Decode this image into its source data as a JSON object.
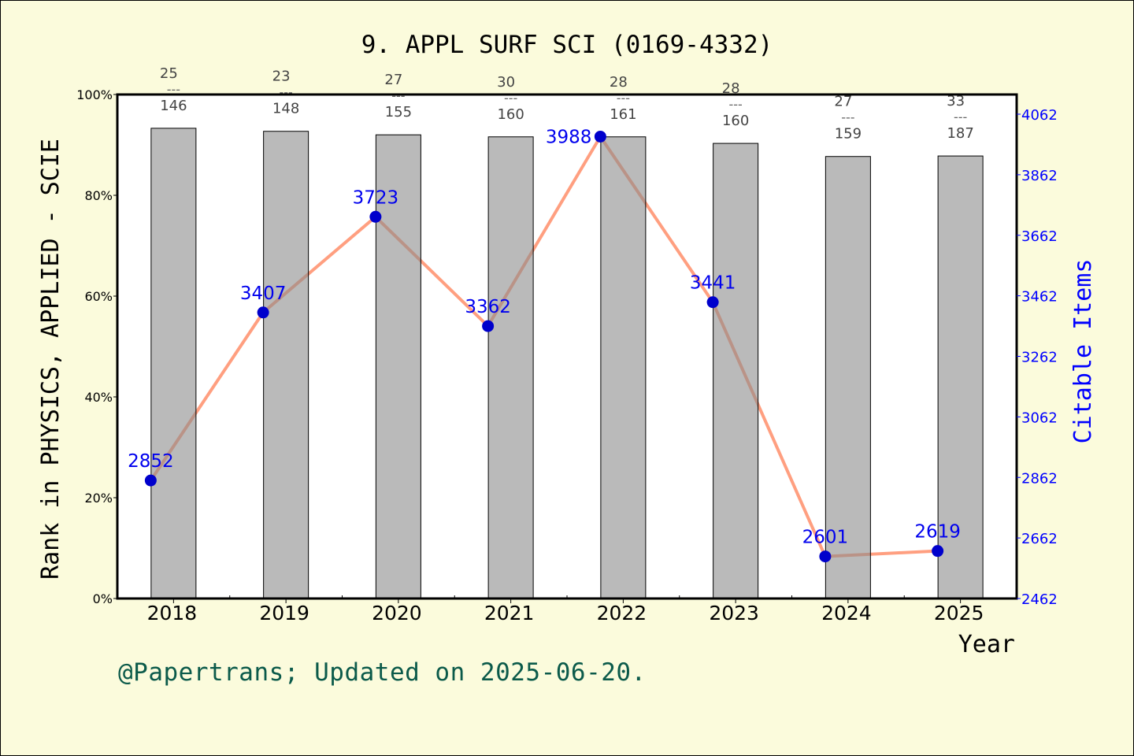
{
  "chart_data": {
    "type": "bar+line",
    "title": "9. APPL SURF SCI (0169-4332)",
    "xlabel": "Year",
    "ylabel_left": "Rank in PHYSICS, APPLIED - SCIE",
    "ylabel_right": "Citable Items",
    "categories": [
      "2018",
      "2019",
      "2020",
      "2021",
      "2022",
      "2023",
      "2024",
      "2025"
    ],
    "ylim_left": [
      0,
      100
    ],
    "left_ticks": [
      "0%",
      "20%",
      "40%",
      "60%",
      "80%",
      "100%"
    ],
    "ylim_right": [
      2462,
      4062
    ],
    "right_ticks": [
      "2462",
      "2662",
      "2862",
      "3062",
      "3262",
      "3462",
      "3662",
      "3862",
      "4062"
    ],
    "bar_values_percent": [
      93.3,
      92.7,
      92.0,
      91.6,
      91.6,
      90.3,
      87.7,
      87.8
    ],
    "rank_labels": [
      {
        "rank": "25",
        "total": "146"
      },
      {
        "rank": "23",
        "total": "148"
      },
      {
        "rank": "27",
        "total": "155"
      },
      {
        "rank": "30",
        "total": "160"
      },
      {
        "rank": "28",
        "total": "161"
      },
      {
        "rank": "28",
        "total": "160"
      },
      {
        "rank": "27",
        "total": "159"
      },
      {
        "rank": "33",
        "total": "187"
      }
    ],
    "fraction_bar": "---",
    "line_values": [
      2852,
      3407,
      3723,
      3362,
      3988,
      3441,
      2601,
      2619
    ],
    "colors": {
      "bar": "#b9b9b9",
      "line": "#ff9f80",
      "marker": "#0000cc",
      "right_axis": "#0000ff",
      "footer": "#0b5a4a",
      "background": "#fbfbdc"
    },
    "grid": false
  },
  "footer": "@Papertrans; Updated on 2025-06-20."
}
